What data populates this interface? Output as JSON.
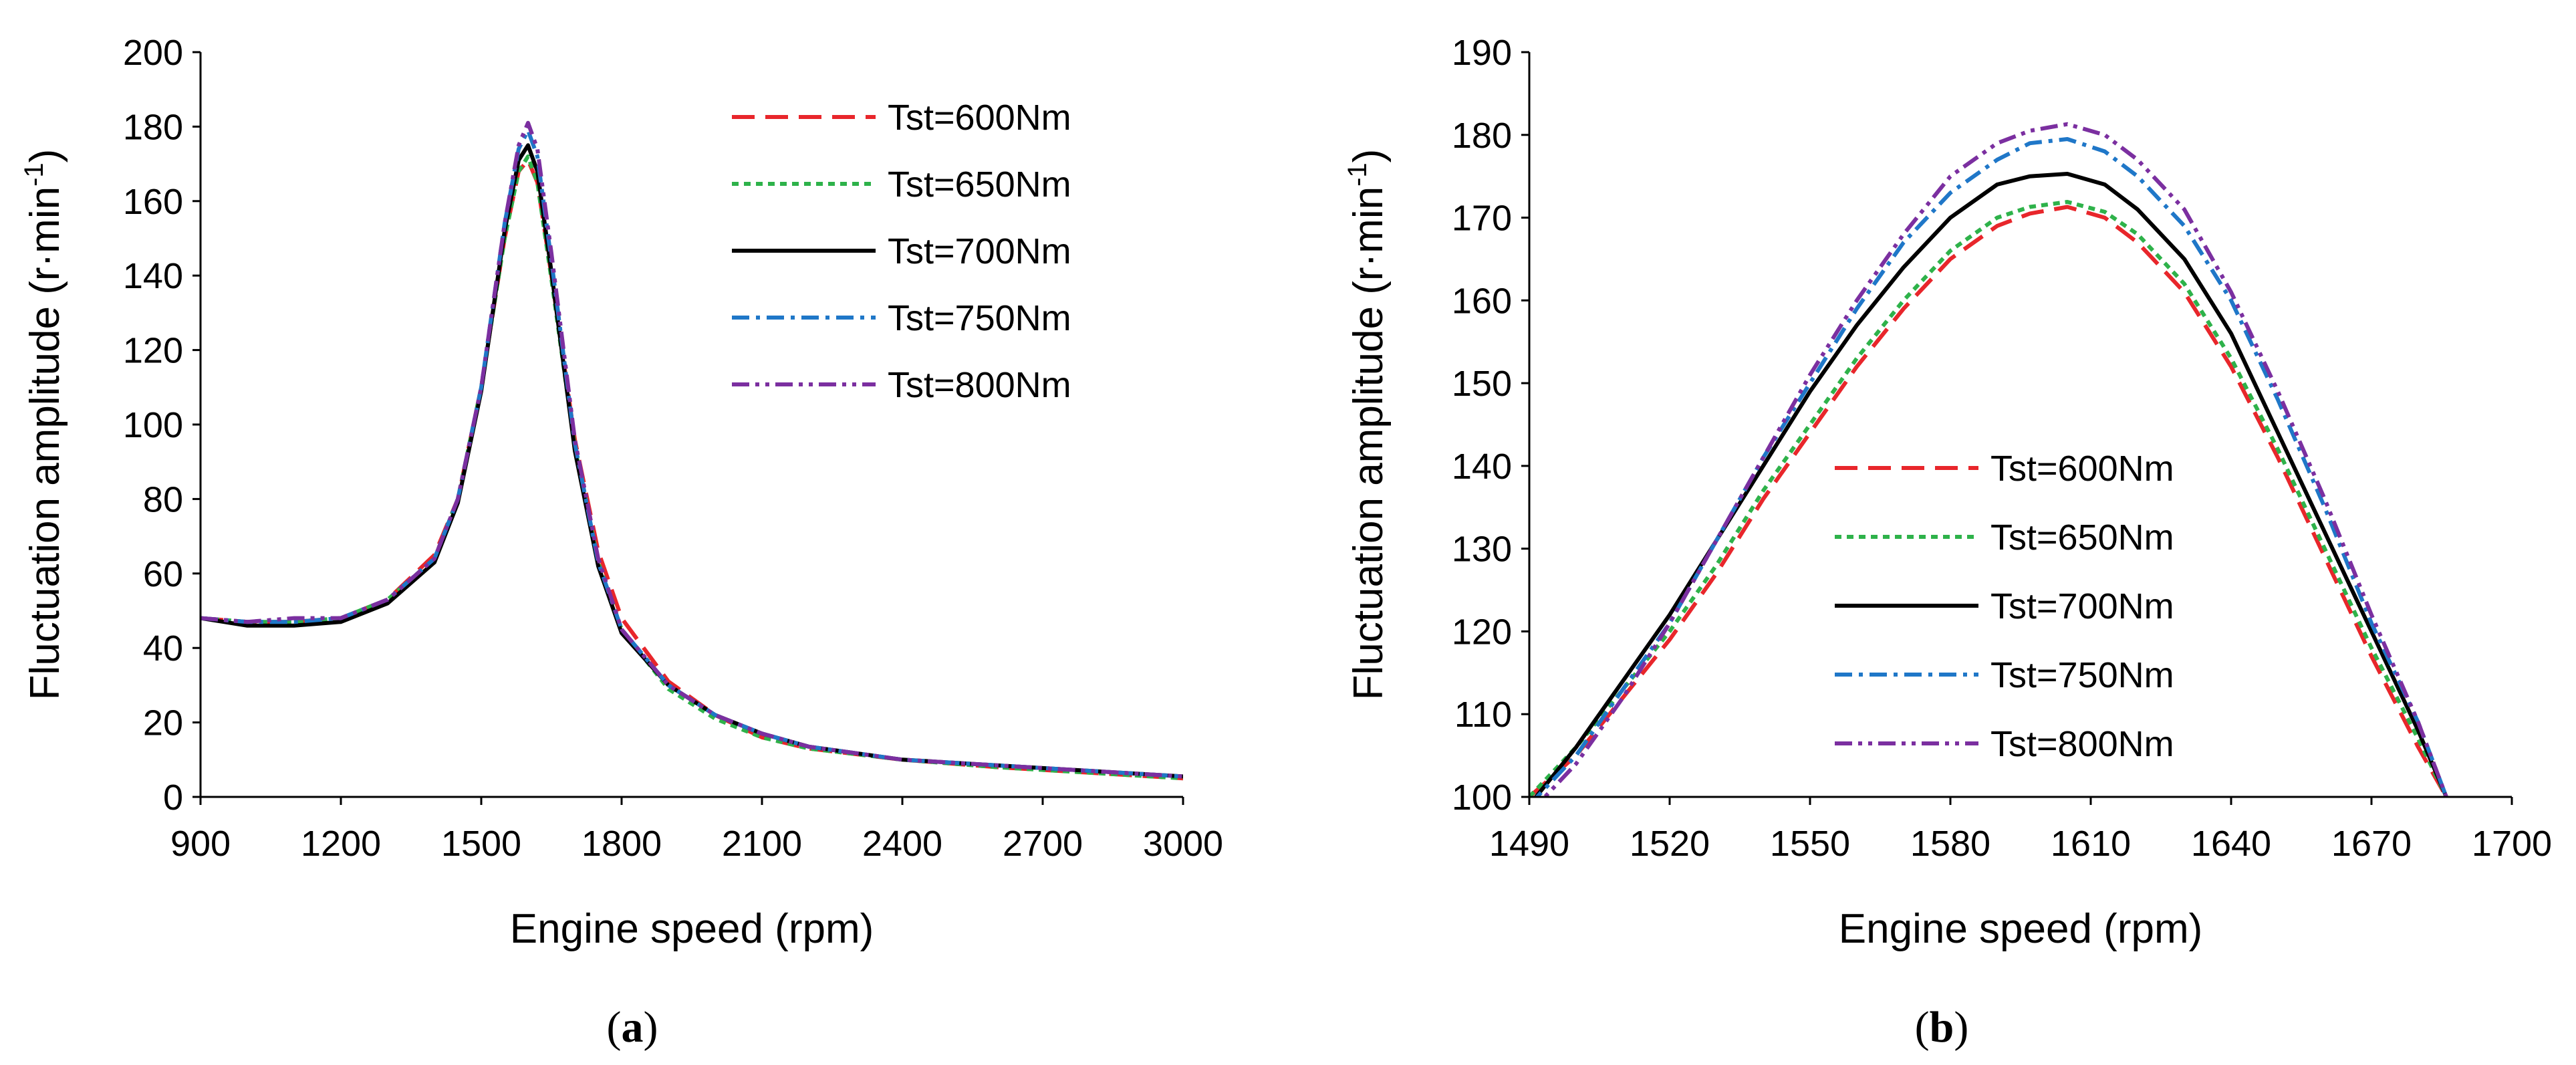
{
  "chart_data": [
    {
      "type": "line",
      "panel_label": "a",
      "xlabel": "Engine speed (rpm)",
      "ylabel": "Fluctuation amplitude (r·min",
      "ylabel_sup": "-1",
      "ylabel_close": ")",
      "xlim": [
        900,
        3000
      ],
      "ylim": [
        0,
        200
      ],
      "xticks": [
        900,
        1200,
        1500,
        1800,
        2100,
        2400,
        2700,
        3000
      ],
      "yticks": [
        0,
        20,
        40,
        60,
        80,
        100,
        120,
        140,
        160,
        180,
        200
      ],
      "legend_position": "top-right",
      "x": [
        900,
        1000,
        1100,
        1200,
        1300,
        1400,
        1450,
        1500,
        1550,
        1580,
        1600,
        1620,
        1650,
        1700,
        1750,
        1800,
        1900,
        2000,
        2100,
        2200,
        2400,
        2600,
        2800,
        3000
      ],
      "series": [
        {
          "name": "Tst=600Nm",
          "color": "#e8262b",
          "dash": "dash",
          "values": [
            48,
            47,
            47,
            48,
            53,
            65,
            80,
            110,
            150,
            168,
            171,
            165,
            140,
            96,
            66,
            48,
            31,
            22,
            16,
            13,
            10,
            8,
            6.5,
            5
          ]
        },
        {
          "name": "Tst=650Nm",
          "color": "#2eb24a",
          "dash": "dot",
          "values": [
            48,
            47,
            47,
            48,
            53,
            64,
            80,
            110,
            150,
            168,
            172,
            165,
            139,
            94,
            63,
            45,
            29,
            21,
            16,
            13,
            10,
            8,
            6.5,
            5
          ]
        },
        {
          "name": "Tst=700Nm",
          "color": "#000000",
          "dash": "solid",
          "values": [
            48,
            46,
            46,
            47,
            52,
            63,
            79,
            109,
            152,
            171,
            175,
            168,
            141,
            93,
            62,
            44,
            30,
            22,
            17,
            13.5,
            10,
            8.5,
            7,
            5.5
          ]
        },
        {
          "name": "Tst=750Nm",
          "color": "#1f77c8",
          "dash": "dashdot",
          "values": [
            48,
            47,
            47,
            48,
            53,
            64,
            80,
            110,
            154,
            174,
            179,
            172,
            144,
            95,
            63,
            45,
            30,
            22,
            17,
            13.5,
            10,
            8.5,
            7,
            5.5
          ]
        },
        {
          "name": "Tst=800Nm",
          "color": "#7b2fa0",
          "dash": "dashdotdot",
          "values": [
            48,
            47,
            48,
            48,
            53,
            64,
            80,
            110,
            154,
            175,
            181,
            174,
            146,
            96,
            64,
            45,
            30,
            22,
            17,
            13.5,
            10,
            8.5,
            7,
            5.5
          ]
        }
      ]
    },
    {
      "type": "line",
      "panel_label": "b",
      "xlabel": "Engine speed (rpm)",
      "ylabel": "Fluctuation amplitude (r·min",
      "ylabel_sup": "-1",
      "ylabel_close": ")",
      "xlim": [
        1490,
        1700
      ],
      "ylim": [
        100,
        190
      ],
      "xticks": [
        1490,
        1520,
        1550,
        1580,
        1610,
        1640,
        1670,
        1700
      ],
      "yticks": [
        100,
        110,
        120,
        130,
        140,
        150,
        160,
        170,
        180,
        190
      ],
      "legend_position": "center-left",
      "x": [
        1490,
        1500,
        1510,
        1520,
        1530,
        1540,
        1550,
        1560,
        1570,
        1580,
        1590,
        1597,
        1605,
        1613,
        1620,
        1630,
        1640,
        1650,
        1660,
        1670,
        1680,
        1686
      ],
      "series": [
        {
          "name": "Tst=600Nm",
          "color": "#e8262b",
          "dash": "dash",
          "values": [
            100,
            105,
            112,
            119,
            127,
            136,
            144,
            152,
            159,
            165,
            169,
            170.5,
            171.3,
            170,
            167,
            161,
            152,
            141,
            129,
            117,
            106,
            100
          ]
        },
        {
          "name": "Tst=650Nm",
          "color": "#2eb24a",
          "dash": "dot",
          "values": [
            100,
            106,
            113,
            120,
            128,
            137,
            145,
            153,
            160,
            166,
            170,
            171.3,
            171.9,
            170.7,
            168,
            162,
            153,
            142,
            130,
            118,
            107,
            100
          ]
        },
        {
          "name": "Tst=700Nm",
          "color": "#000000",
          "dash": "solid",
          "values": [
            99,
            106,
            114,
            122,
            131,
            140,
            149,
            157,
            164,
            170,
            174,
            175,
            175.3,
            174,
            171,
            165,
            156,
            144,
            132,
            120,
            108,
            100
          ]
        },
        {
          "name": "Tst=750Nm",
          "color": "#1f77c8",
          "dash": "dashdot",
          "values": [
            99,
            105,
            113,
            121,
            131,
            141,
            150,
            159,
            167,
            173,
            177,
            179,
            179.5,
            178,
            175,
            169,
            160,
            148,
            135,
            121,
            109,
            100
          ]
        },
        {
          "name": "Tst=800Nm",
          "color": "#7b2fa0",
          "dash": "dashdotdot",
          "values": [
            98,
            104,
            112,
            121,
            131,
            141,
            151,
            160,
            168,
            175,
            179,
            180.5,
            181.3,
            180,
            177,
            171,
            161,
            149,
            136,
            122,
            109,
            100
          ]
        }
      ]
    }
  ]
}
